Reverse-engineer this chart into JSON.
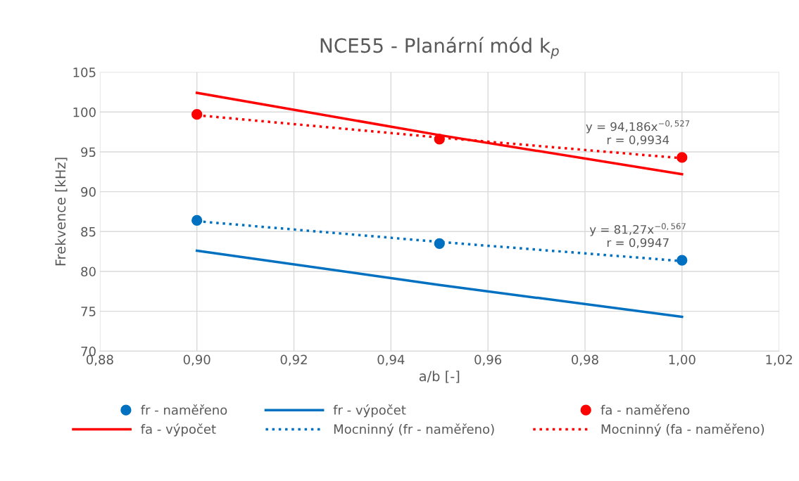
{
  "chart_data": {
    "type": "scatter",
    "title": "NCE55 - Planární mód k$_{p}$",
    "xlabel": "a/b [-]",
    "ylabel": "Frekvence [kHz]",
    "xlim": [
      0.88,
      1.02
    ],
    "xticks": [
      {
        "value": 0.88,
        "label": "0,88"
      },
      {
        "value": 0.9,
        "label": "0,90"
      },
      {
        "value": 0.92,
        "label": "0,92"
      },
      {
        "value": 0.94,
        "label": "0,94"
      },
      {
        "value": 0.96,
        "label": "0,96"
      },
      {
        "value": 0.98,
        "label": "0,98"
      },
      {
        "value": 1.0,
        "label": "1,00"
      },
      {
        "value": 1.02,
        "label": "1,02"
      }
    ],
    "ylim": [
      70,
      105
    ],
    "yticks": [
      70,
      75,
      80,
      85,
      90,
      95,
      100,
      105
    ],
    "grid": true,
    "legend": "bottom",
    "x": [
      0.9,
      0.95,
      1.0
    ],
    "series": [
      {
        "name": "fr - naměřeno",
        "type": "scatter",
        "color": "#0070c0",
        "marker": "circle",
        "values": [
          86.4,
          83.5,
          81.4
        ]
      },
      {
        "name": "fr - výpočet",
        "type": "line",
        "color": "#0070c0",
        "line_style": "solid",
        "marker": "none",
        "values": [
          82.6,
          78.3,
          74.3
        ]
      },
      {
        "name": "fa - naměřeno",
        "type": "scatter",
        "color": "#ff0000",
        "marker": "circle",
        "values": [
          99.7,
          96.6,
          94.3
        ]
      },
      {
        "name": "fa - výpočet",
        "type": "line",
        "color": "#ff0000",
        "line_style": "solid",
        "marker": "none",
        "values": [
          102.4,
          97.1,
          92.2
        ]
      },
      {
        "name": "Mocninný (fr - naměřeno)",
        "type": "line",
        "color": "#0070c0",
        "line_style": "dotted",
        "marker": "none",
        "x": [
          0.9,
          0.95,
          1.0
        ],
        "values": [
          86.3,
          83.7,
          81.3
        ]
      },
      {
        "name": "Mocninný (fa - naměřeno)",
        "type": "line",
        "color": "#ff0000",
        "line_style": "dotted",
        "marker": "none",
        "x": [
          0.9,
          0.95,
          1.0
        ],
        "values": [
          99.6,
          96.8,
          94.2
        ]
      }
    ],
    "annotations": [
      {
        "text": "y = 94,186x$^{−0,527}$\nr = 0,9934",
        "x": 1.0,
        "y": 94.2
      },
      {
        "text": "y = 81,27x$^{−0,567}$\nr = 0,9947",
        "x": 1.0,
        "y": 81.3
      }
    ]
  }
}
